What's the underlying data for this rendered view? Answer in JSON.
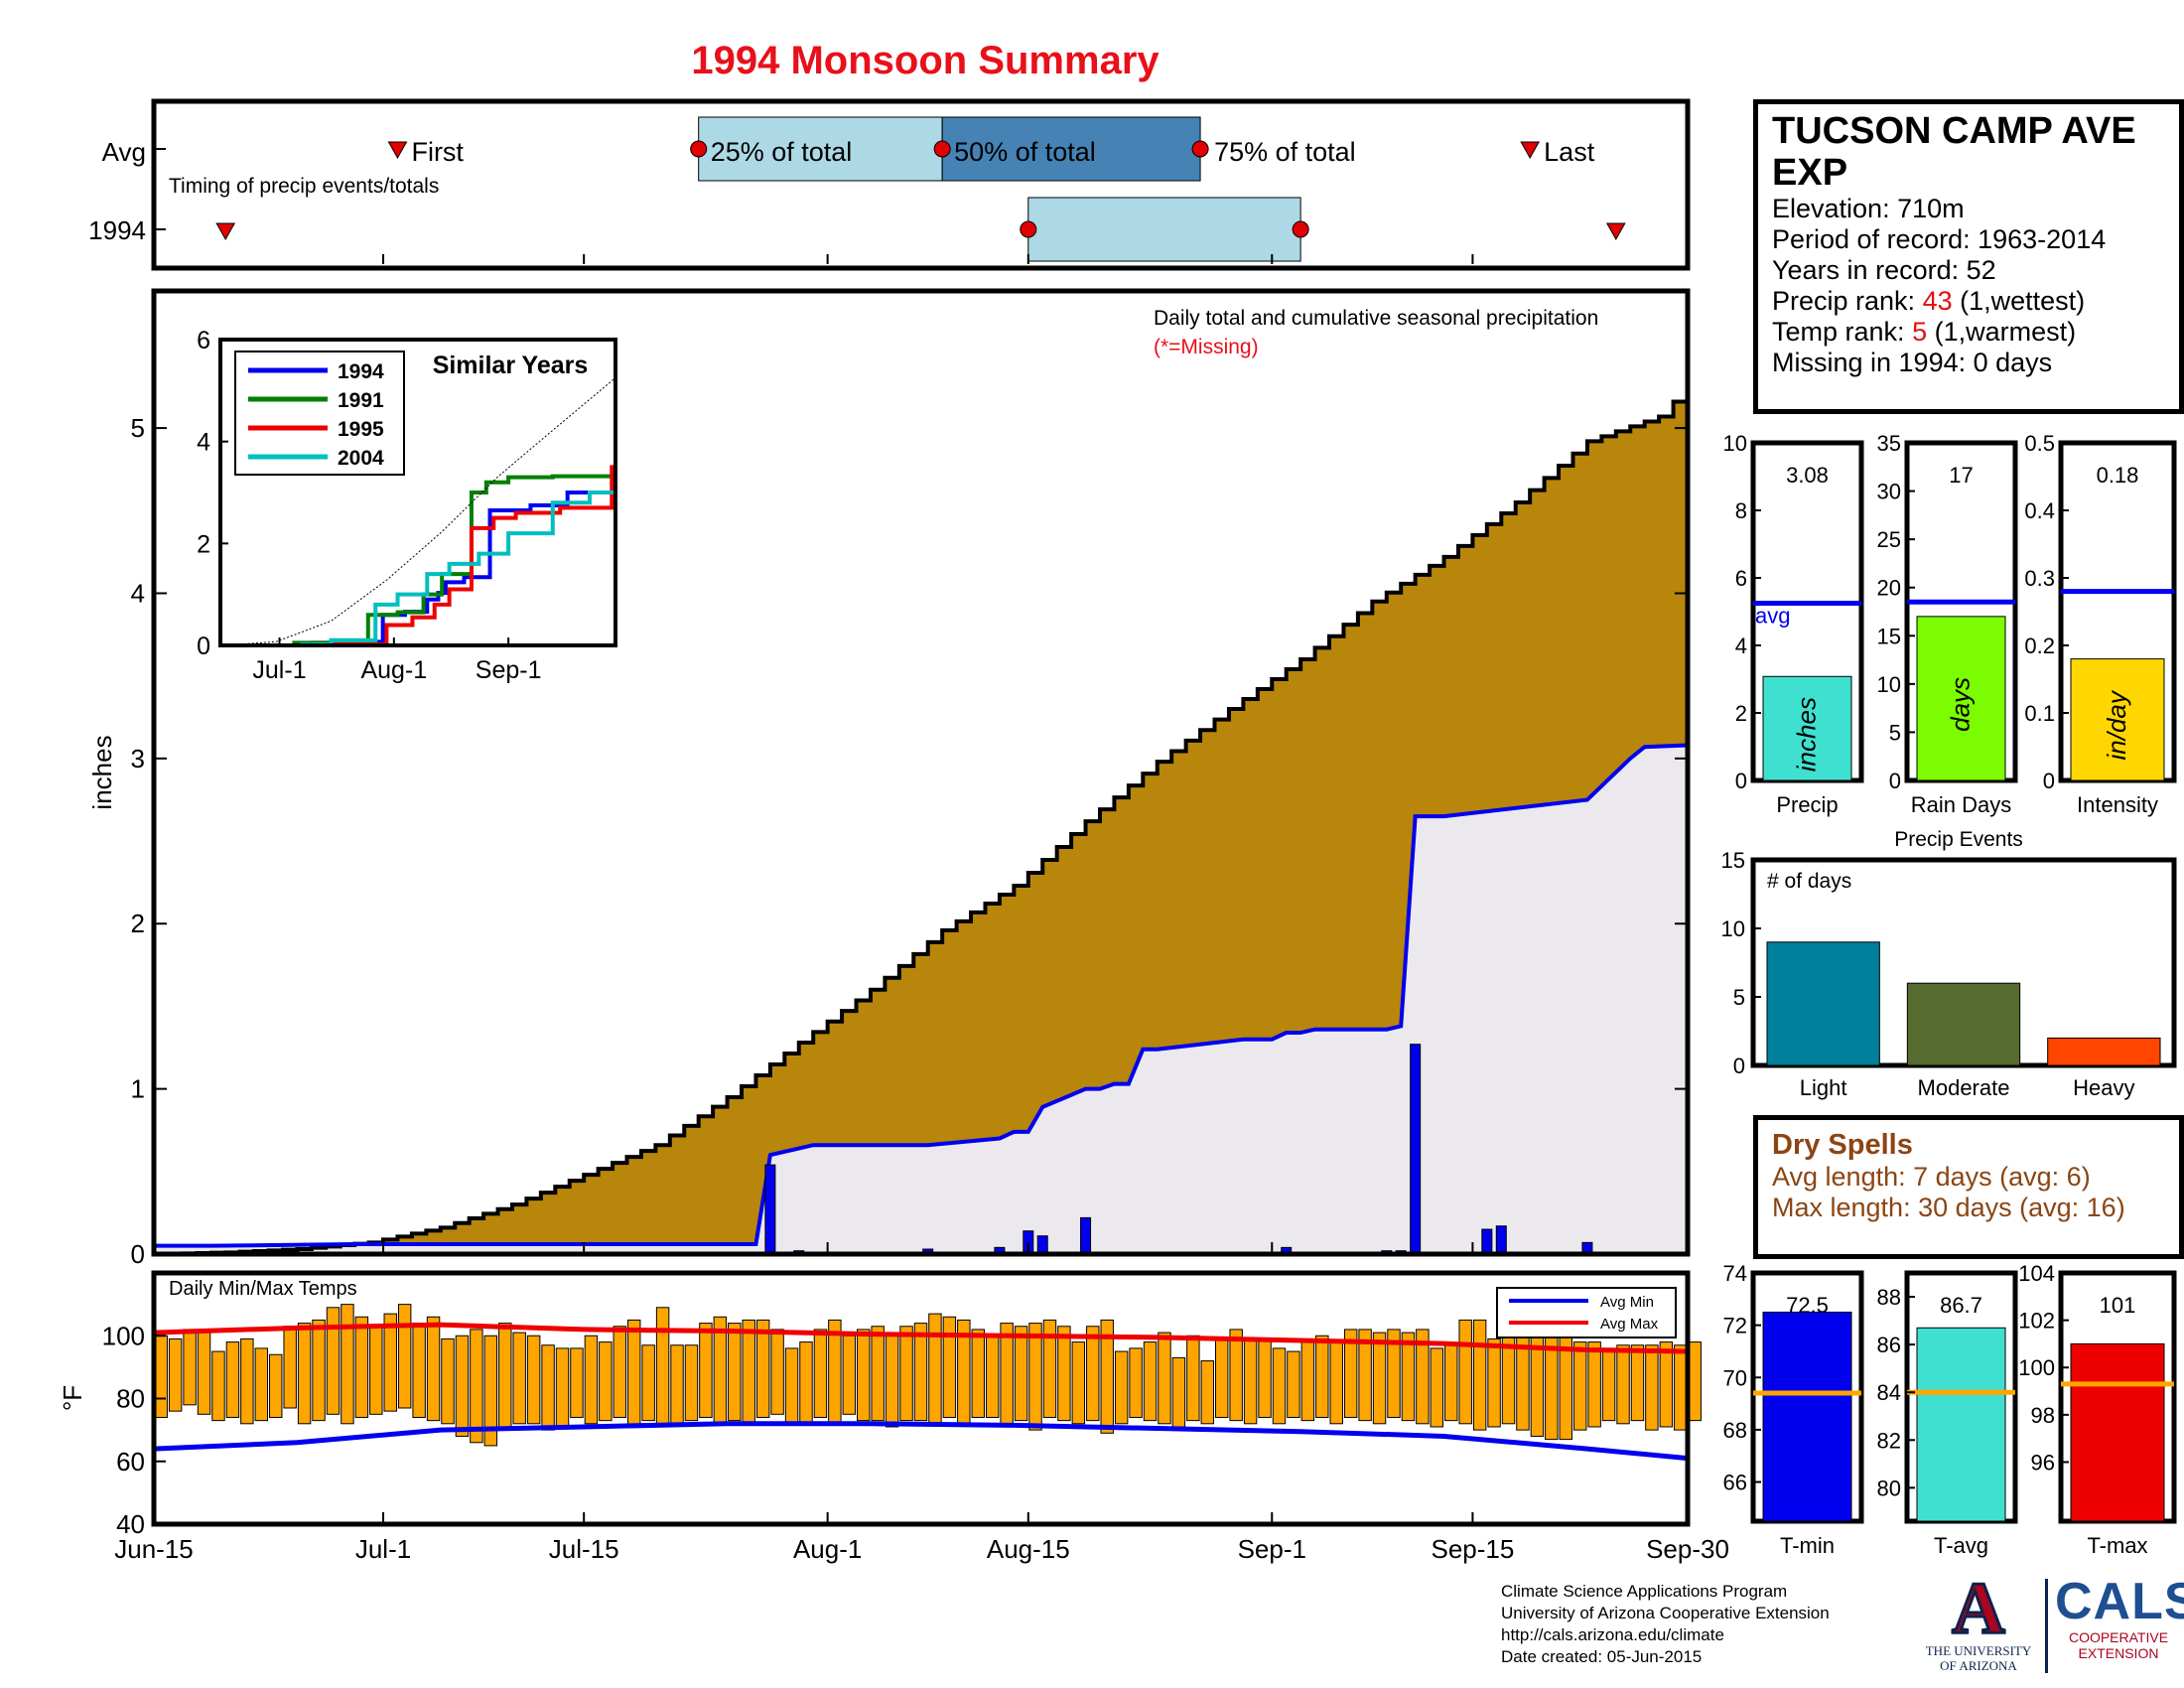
{
  "title": "1994 Monsoon Summary",
  "timing": {
    "row_avg": "Avg",
    "row_year": "1994",
    "caption": "Timing of precip events/totals",
    "label_first": "First",
    "label_25": "25% of total",
    "label_50": "50% of total",
    "label_75": "75% of total",
    "label_last": "Last"
  },
  "main": {
    "annotation": "Daily total and cumulative seasonal precipitation",
    "missing_note": "(*=Missing)",
    "ylabel": "inches",
    "x_ticks": [
      "Jun-15",
      "Jul-1",
      "Jul-15",
      "Aug-1",
      "Aug-15",
      "Sep-1",
      "Sep-15",
      "Sep-30"
    ]
  },
  "similar": {
    "title": "Similar Years",
    "x_ticks": [
      "Jul-1",
      "Aug-1",
      "Sep-1"
    ]
  },
  "temps": {
    "title": "Daily Min/Max Temps",
    "ylabel": "°F",
    "legend_min": "Avg Min",
    "legend_max": "Avg Max"
  },
  "station": {
    "name_line1": "TUCSON CAMP AVE",
    "name_line2": "EXP",
    "elevation": "Elevation: 710m",
    "period": "Period of record: 1963-2014",
    "years": "Years in record: 52",
    "precip_rank_prefix": "Precip rank: ",
    "precip_rank": "43",
    "precip_rank_suffix": " (1,wettest)",
    "temp_rank_prefix": "Temp rank: ",
    "temp_rank": "5",
    "temp_rank_suffix": " (1,warmest)",
    "missing": "Missing in 1994: 0 days"
  },
  "dry_spells": {
    "title": "Dry Spells",
    "avg": "Avg length: 7 days (avg: 6)",
    "max": "Max length: 30 days (avg: 16)"
  },
  "credits": {
    "line1": "Climate Science Applications Program",
    "line2": "University of Arizona Cooperative Extension",
    "line3": "http://cals.arizona.edu/climate",
    "line4": " Date created: 05-Jun-2015"
  },
  "logos": {
    "ua_letter": "A",
    "ua_line1": "THE UNIVERSITY",
    "ua_line2": "OF ARIZONA",
    "cals": "CALS",
    "cals_line1": "COOPERATIVE",
    "cals_line2": "EXTENSION"
  },
  "colors": {
    "title": "#e8101a",
    "avg_cum": "#b8860b",
    "year_cum": "#0000ee",
    "missing": "#e8101a",
    "box25": "#add8e6",
    "box50": "#4682b4",
    "temp_bar": "#ffa500",
    "avg_min": "#0000ee",
    "avg_max": "#ee0000"
  },
  "chart_data": [
    {
      "type": "table",
      "id": "timing",
      "x_ticks": [
        "Jun-15",
        "Jul-1",
        "Jul-15",
        "Aug-1",
        "Aug-15",
        "Sep-1",
        "Sep-15",
        "Sep-30"
      ],
      "avg": {
        "first": "Jul-2",
        "p25": "Jul-23",
        "p50": "Aug-9",
        "p75": "Aug-27",
        "last": "Sep-19"
      },
      "year_1994": {
        "first": "Jun-20",
        "p25": "Aug-15",
        "p75": "Sep-3",
        "last": "Sep-25"
      }
    },
    {
      "type": "area",
      "id": "cumulative",
      "ylabel": "inches",
      "ylim": [
        0,
        5.83
      ],
      "y_ticks": [
        0,
        1,
        2,
        3,
        4,
        5
      ],
      "x_ticks": [
        "Jun-15",
        "Jul-1",
        "Jul-15",
        "Aug-1",
        "Aug-15",
        "Sep-1",
        "Sep-15",
        "Sep-30"
      ],
      "series": [
        {
          "name": "avg cumulative",
          "x": [
            0,
            5,
            10,
            15,
            20,
            25,
            30,
            35,
            40,
            45,
            50,
            55,
            60,
            65,
            70,
            75,
            80,
            85,
            90,
            95,
            100,
            105,
            107
          ],
          "y": [
            0,
            0.01,
            0.03,
            0.07,
            0.16,
            0.3,
            0.48,
            0.66,
            0.95,
            1.28,
            1.6,
            1.96,
            2.23,
            2.62,
            2.98,
            3.3,
            3.6,
            3.95,
            4.22,
            4.55,
            4.92,
            5.07,
            5.25
          ]
        },
        {
          "name": "1994 cumulative",
          "x": [
            0,
            4,
            14,
            42,
            43,
            45,
            46,
            54,
            59,
            60,
            61,
            62,
            65,
            66,
            67,
            68,
            69,
            70,
            76,
            78,
            79,
            80,
            81,
            86,
            87,
            88,
            89,
            90,
            100,
            103,
            104,
            107
          ],
          "y": [
            0.05,
            0.05,
            0.06,
            0.06,
            0.6,
            0.64,
            0.66,
            0.66,
            0.7,
            0.74,
            0.74,
            0.89,
            1.0,
            1.0,
            1.03,
            1.03,
            1.24,
            1.24,
            1.3,
            1.3,
            1.34,
            1.34,
            1.36,
            1.36,
            1.38,
            2.65,
            2.65,
            2.65,
            2.75,
            3.0,
            3.07,
            3.08
          ]
        },
        {
          "name": "1994 daily",
          "x": [
            4,
            43,
            45,
            54,
            59,
            61,
            62,
            65,
            79,
            86,
            87,
            88,
            93,
            94,
            100
          ],
          "y": [
            0.01,
            0.54,
            0.02,
            0.03,
            0.04,
            0.14,
            0.11,
            0.22,
            0.04,
            0.02,
            0.02,
            1.27,
            0.15,
            0.17,
            0.07
          ]
        }
      ]
    },
    {
      "type": "line",
      "id": "similar_years",
      "title": "Similar Years",
      "ylim": [
        0,
        6
      ],
      "y_ticks": [
        0,
        2,
        4,
        6
      ],
      "x_ticks": [
        "Jul-1",
        "Aug-1",
        "Sep-1"
      ],
      "series": [
        {
          "name": "1994",
          "color": "#0000ee",
          "x": [
            0,
            25,
            34,
            44,
            50,
            56,
            59,
            61,
            66,
            73,
            84,
            94,
            107
          ],
          "y": [
            0,
            0.05,
            0.07,
            0.6,
            0.66,
            0.9,
            1.03,
            1.24,
            1.34,
            2.65,
            2.75,
            3.0,
            3.08
          ]
        },
        {
          "name": "1991",
          "color": "#008000",
          "x": [
            0,
            20,
            30,
            40,
            48,
            55,
            60,
            68,
            72,
            78,
            90,
            107
          ],
          "y": [
            0,
            0.05,
            0.1,
            0.6,
            0.65,
            1.0,
            1.4,
            3.0,
            3.2,
            3.3,
            3.32,
            3.33
          ]
        },
        {
          "name": "1995",
          "color": "#ee0000",
          "x": [
            0,
            30,
            45,
            52,
            58,
            62,
            68,
            74,
            80,
            92,
            104,
            106,
            107
          ],
          "y": [
            0,
            0.02,
            0.4,
            0.55,
            0.8,
            1.1,
            2.3,
            2.5,
            2.6,
            2.7,
            2.7,
            3.5,
            3.6
          ]
        },
        {
          "name": "2004",
          "color": "#00bfbf",
          "x": [
            0,
            22,
            30,
            42,
            48,
            56,
            62,
            70,
            78,
            90,
            100,
            107
          ],
          "y": [
            0,
            0.02,
            0.1,
            0.8,
            1.0,
            1.4,
            1.6,
            1.8,
            2.2,
            2.8,
            3.0,
            3.1
          ]
        },
        {
          "name": "avg",
          "color": "#000000",
          "x": [
            0,
            15,
            30,
            45,
            60,
            75,
            90,
            107
          ],
          "y": [
            0,
            0.07,
            0.48,
            1.28,
            2.23,
            3.3,
            4.22,
            5.25
          ]
        }
      ]
    },
    {
      "type": "bar",
      "id": "daily_temps",
      "title": "Daily Min/Max Temps",
      "ylabel": "°F",
      "ylim": [
        40,
        120
      ],
      "y_ticks": [
        40,
        60,
        80,
        100
      ],
      "x_ticks": [
        "Jun-15",
        "Jul-1",
        "Jul-15",
        "Aug-1",
        "Aug-15",
        "Sep-1",
        "Sep-15",
        "Sep-30"
      ],
      "daily_max": [
        100,
        99,
        102,
        102,
        95,
        98,
        99,
        96,
        94,
        103,
        104,
        105,
        109,
        110,
        106,
        103,
        107,
        110,
        104,
        106,
        99,
        100,
        102,
        100,
        104,
        101,
        100,
        97,
        96,
        96,
        100,
        98,
        103,
        105,
        97,
        109,
        97,
        97,
        104,
        106,
        104,
        105,
        105,
        102,
        96,
        98,
        102,
        105,
        100,
        102,
        103,
        100,
        103,
        104,
        107,
        106,
        105,
        102,
        100,
        104,
        103,
        104,
        105,
        103,
        98,
        103,
        105,
        95,
        96,
        98,
        101,
        93,
        100,
        92,
        99,
        102,
        99,
        99,
        96,
        95,
        98,
        100,
        98,
        102,
        102,
        101,
        102,
        101,
        102,
        96,
        97,
        105,
        105,
        99,
        105,
        103,
        102,
        101,
        102,
        98,
        98,
        96,
        97,
        97,
        97,
        98,
        97,
        98
      ],
      "daily_min": [
        74,
        76,
        78,
        75,
        73,
        74,
        72,
        73,
        74,
        77,
        72,
        73,
        75,
        72,
        74,
        75,
        76,
        77,
        74,
        73,
        72,
        68,
        66,
        65,
        70,
        72,
        72,
        70,
        71,
        74,
        72,
        73,
        74,
        71,
        73,
        72,
        72,
        73,
        74,
        72,
        73,
        72,
        74,
        75,
        72,
        72,
        74,
        72,
        75,
        73,
        73,
        71,
        73,
        73,
        72,
        74,
        72,
        74,
        74,
        72,
        73,
        70,
        74,
        73,
        72,
        73,
        69,
        72,
        74,
        73,
        72,
        71,
        73,
        72,
        74,
        73,
        72,
        74,
        72,
        74,
        73,
        74,
        72,
        74,
        73,
        72,
        74,
        73,
        72,
        71,
        73,
        72,
        70,
        71,
        72,
        70,
        68,
        67,
        67,
        70,
        71,
        73,
        72,
        73,
        70,
        71,
        70,
        73
      ],
      "series": [
        {
          "name": "Avg Max",
          "x": [
            0,
            10,
            20,
            30,
            40,
            50,
            60,
            70,
            80,
            90,
            100,
            107
          ],
          "y": [
            101,
            102.5,
            103.5,
            102,
            101.5,
            100.5,
            100,
            99.5,
            98.5,
            97.5,
            95.5,
            95
          ]
        },
        {
          "name": "Avg Min",
          "x": [
            0,
            10,
            20,
            30,
            40,
            50,
            60,
            70,
            80,
            90,
            100,
            107
          ],
          "y": [
            64,
            66,
            70,
            71,
            72,
            72,
            71.5,
            70.5,
            69.5,
            68,
            64,
            61
          ]
        }
      ]
    },
    {
      "type": "bar",
      "id": "precip",
      "xlabel": "Precip",
      "ylim": [
        0,
        10
      ],
      "y_ticks": [
        0,
        2,
        4,
        6,
        8,
        10
      ],
      "value": 3.08,
      "value_label": "3.08",
      "avg": 5.25,
      "avg_label": "avg",
      "unit_label": "inches",
      "color": "#40e0d0"
    },
    {
      "type": "bar",
      "id": "rain_days",
      "xlabel": "Rain Days",
      "ylim": [
        0,
        35
      ],
      "y_ticks": [
        0,
        5,
        10,
        15,
        20,
        25,
        30,
        35
      ],
      "value": 17,
      "value_label": "17",
      "avg": 18.5,
      "unit_label": "days",
      "color": "#7cfc00"
    },
    {
      "type": "bar",
      "id": "intensity",
      "xlabel": "Intensity",
      "ylim": [
        0,
        0.5
      ],
      "y_ticks": [
        0,
        0.1,
        0.2,
        0.3,
        0.4,
        0.5
      ],
      "y_tick_labels": [
        "0",
        "0.1",
        "0.2",
        "0.3",
        "0.4",
        "0.5"
      ],
      "value": 0.18,
      "value_label": "0.18",
      "avg": 0.28,
      "unit_label": "in/day",
      "color": "#ffd700"
    },
    {
      "type": "bar",
      "id": "precip_events",
      "title": "Precip Events",
      "ylabel": "# of days",
      "ylim": [
        0,
        15
      ],
      "y_ticks": [
        0,
        5,
        10,
        15
      ],
      "categories": [
        "Light",
        "Moderate",
        "Heavy"
      ],
      "values": [
        9,
        6,
        2
      ],
      "colors": [
        "#00809b",
        "#556b2f",
        "#ff4500"
      ]
    },
    {
      "type": "bar",
      "id": "t_min",
      "xlabel": "T-min",
      "ylim": [
        64.5,
        74
      ],
      "y_ticks": [
        66,
        68,
        70,
        72,
        74
      ],
      "value": 72.5,
      "value_label": "72.5",
      "avg": 69.4,
      "color": "#0000ee"
    },
    {
      "type": "bar",
      "id": "t_avg",
      "xlabel": "T-avg",
      "ylim": [
        78.6,
        89
      ],
      "y_ticks": [
        80,
        82,
        84,
        86,
        88
      ],
      "value": 86.7,
      "value_label": "86.7",
      "avg": 84.0,
      "color": "#40e0d0"
    },
    {
      "type": "bar",
      "id": "t_max",
      "xlabel": "T-max",
      "ylim": [
        93.5,
        104
      ],
      "y_ticks": [
        96,
        98,
        100,
        102,
        104
      ],
      "value": 101,
      "value_label": "101",
      "avg": 99.3,
      "color": "#ee0000"
    }
  ]
}
